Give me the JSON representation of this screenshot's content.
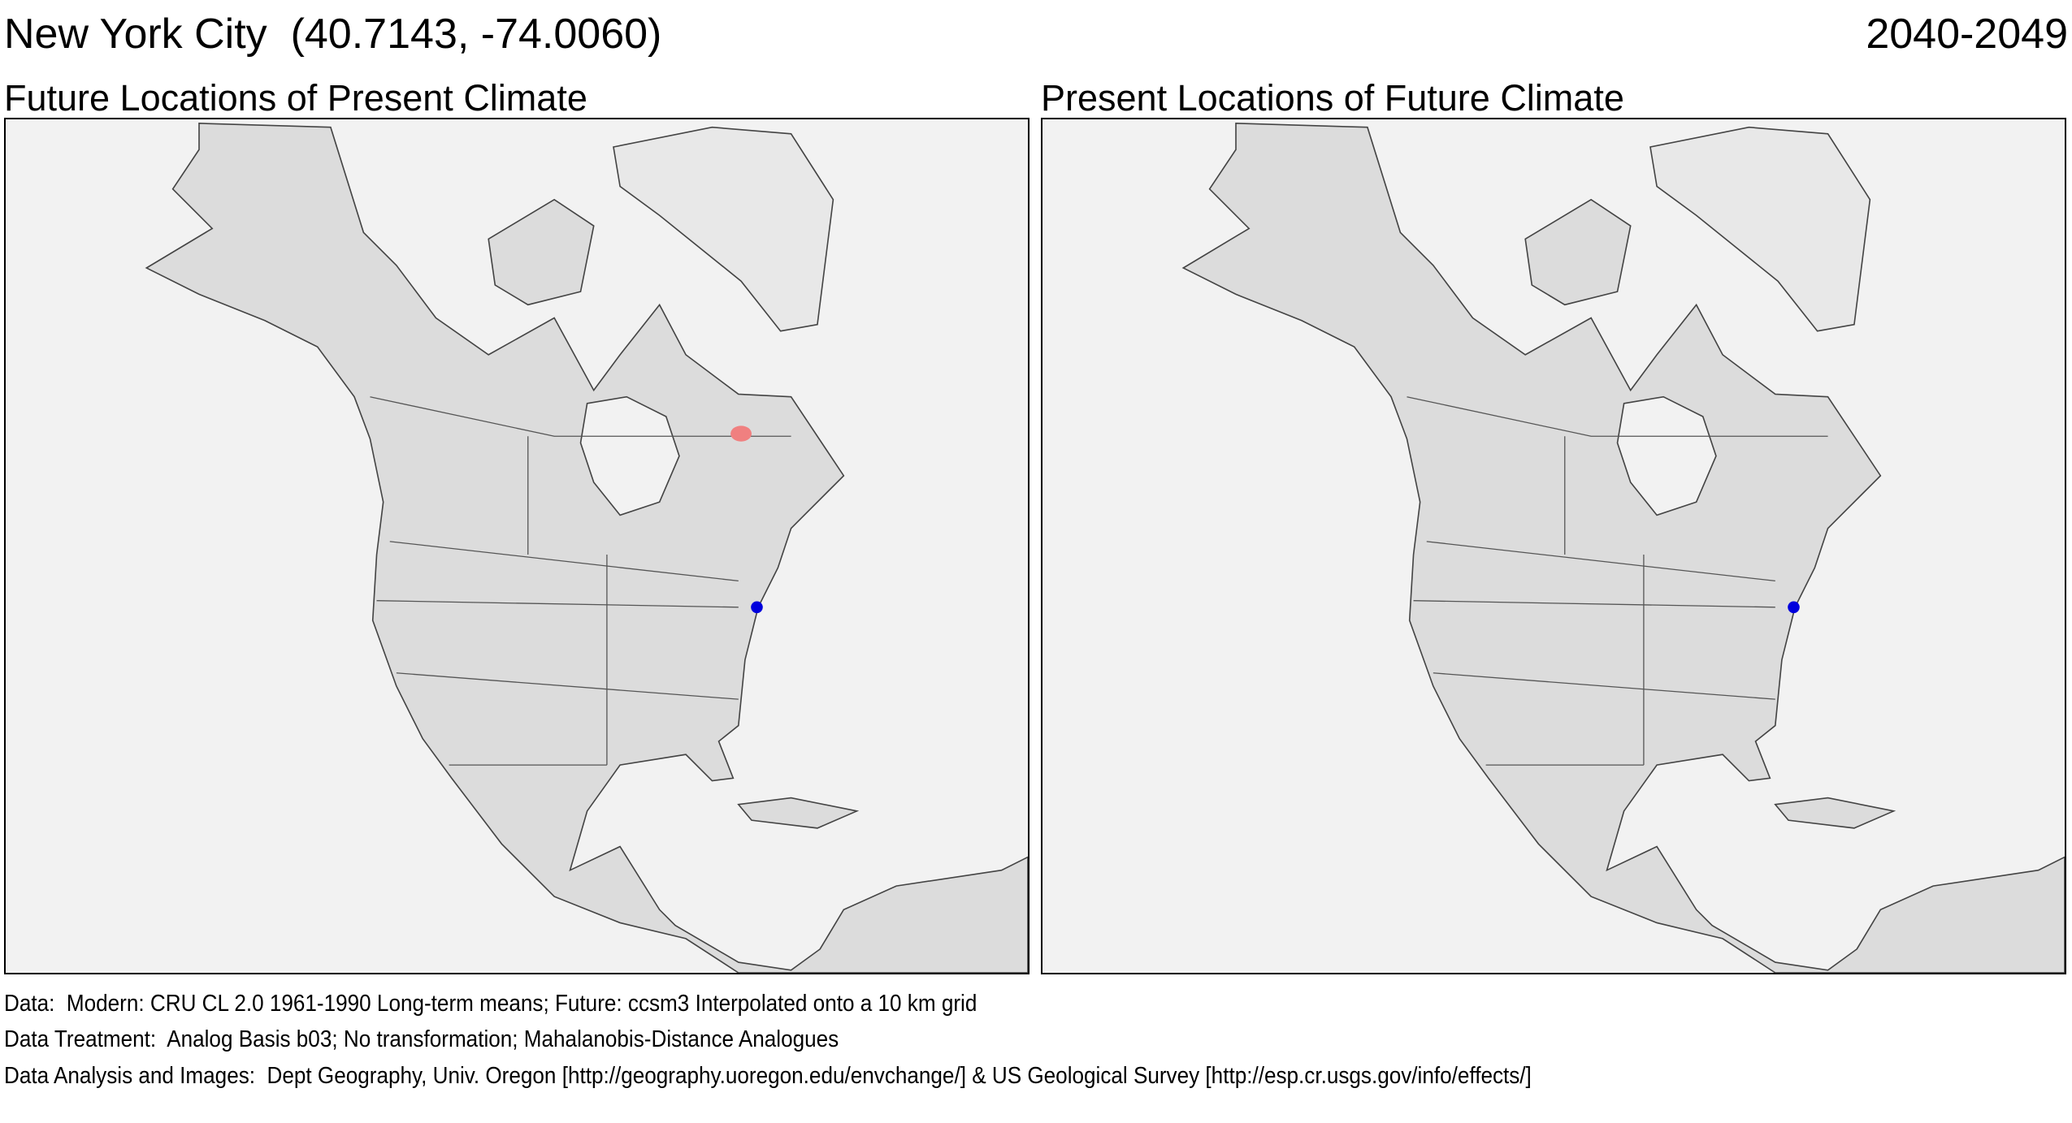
{
  "header": {
    "title": "New York City  (40.7143, -74.0060)",
    "period": "2040-2049"
  },
  "panels": [
    {
      "title": "Future Locations of Present Climate"
    },
    {
      "title": "Present Locations of Future Climate"
    }
  ],
  "footer": [
    "Data:  Modern: CRU CL 2.0 1961-1990 Long-term means; Future: ccsm3 Interpolated onto a 10 km grid",
    "Data Treatment:  Analog Basis b03; No transformation; Mahalanobis-Distance Analogues",
    "Data Analysis and Images:  Dept Geography, Univ. Oregon [http://geography.uoregon.edu/envchange/] & US Geological Survey [http://esp.cr.usgs.gov/info/effects/]"
  ]
}
